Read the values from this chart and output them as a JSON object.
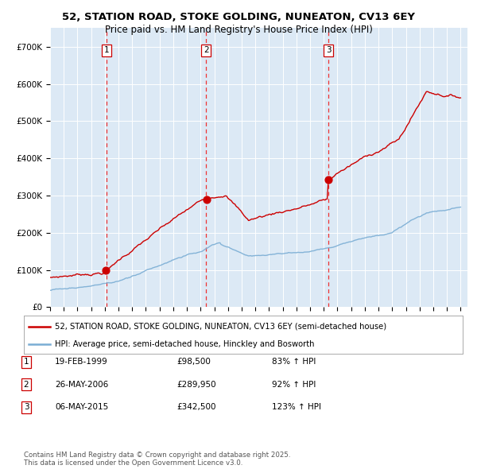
{
  "title1": "52, STATION ROAD, STOKE GOLDING, NUNEATON, CV13 6EY",
  "title2": "Price paid vs. HM Land Registry's House Price Index (HPI)",
  "legend_line1": "52, STATION ROAD, STOKE GOLDING, NUNEATON, CV13 6EY (semi-detached house)",
  "legend_line2": "HPI: Average price, semi-detached house, Hinckley and Bosworth",
  "footnote": "Contains HM Land Registry data © Crown copyright and database right 2025.\nThis data is licensed under the Open Government Licence v3.0.",
  "transactions": [
    {
      "num": 1,
      "date": "19-FEB-1999",
      "price": 98500,
      "pct": "83%",
      "dir": "↑",
      "year": 1999.12
    },
    {
      "num": 2,
      "date": "26-MAY-2006",
      "price": 289950,
      "pct": "92%",
      "dir": "↑",
      "year": 2006.4
    },
    {
      "num": 3,
      "date": "06-MAY-2015",
      "price": 342500,
      "pct": "123%",
      "dir": "↑",
      "year": 2015.34
    }
  ],
  "price_color": "#cc0000",
  "hpi_color": "#7aadd4",
  "bg_color": "#dce9f5",
  "vline_color": "#ee3333",
  "grid_color": "#ffffff",
  "ylim": [
    0,
    750000
  ],
  "yticks": [
    0,
    100000,
    200000,
    300000,
    400000,
    500000,
    600000,
    700000
  ],
  "ytick_labels": [
    "£0",
    "£100K",
    "£200K",
    "£300K",
    "£400K",
    "£500K",
    "£600K",
    "£700K"
  ]
}
